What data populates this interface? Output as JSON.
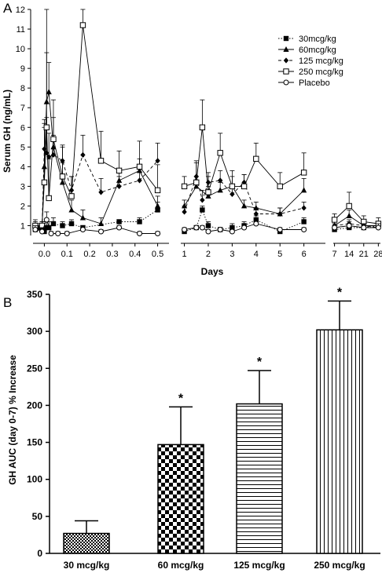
{
  "colors": {
    "ink": "#000000",
    "background": "#ffffff"
  },
  "panel_a": {
    "letter": "A",
    "ylabel": "Serum GH (ng/mL)",
    "xlabel": "Days",
    "legend_position": "top-right"
  },
  "panel_b": {
    "letter": "B",
    "ylabel": "GH AUC (day 0-7) % Increase"
  },
  "chart_data": [
    {
      "type": "line",
      "panel": "A",
      "title": "",
      "xlabel": "Days",
      "ylabel": "Serum GH (ng/mL)",
      "ylim": [
        0,
        12
      ],
      "y_ticks": [
        1,
        2,
        3,
        4,
        5,
        6,
        7,
        8,
        9,
        10,
        11,
        12
      ],
      "grid": false,
      "legend": "top-right",
      "broken_x_axis": true,
      "x_segments": [
        {
          "range": [
            -0.05,
            0.55
          ],
          "ticks": [
            0.0,
            0.1,
            0.2,
            0.3,
            0.4,
            0.5
          ],
          "tick_labels": [
            "0.0",
            "0.1",
            "0.2",
            "0.3",
            "0.4",
            "0.5"
          ]
        },
        {
          "range": [
            0.85,
            6.9
          ],
          "ticks": [
            1,
            2,
            3,
            4,
            5,
            6
          ],
          "tick_labels": [
            "1",
            "2",
            "3",
            "4",
            "5",
            "6"
          ]
        },
        {
          "range": [
            6.4,
            29
          ],
          "ticks": [
            7,
            14,
            21,
            28
          ],
          "tick_labels": [
            "7",
            "14",
            "21",
            "28"
          ]
        }
      ],
      "series": [
        {
          "name": "30mcg/kg",
          "marker": "filled-square",
          "line_style": "dotted",
          "points": [
            {
              "x": -0.04,
              "y": 0.8,
              "err": 0.2
            },
            {
              "x": -0.02,
              "y": 0.9,
              "err": 0.2
            },
            {
              "x": -0.01,
              "y": 0.8,
              "err": 0.2
            },
            {
              "x": 0.0,
              "y": 0.7,
              "err": 0.3
            },
            {
              "x": 0.01,
              "y": 0.9,
              "err": 0.3
            },
            {
              "x": 0.02,
              "y": 0.9,
              "err": 0.3
            },
            {
              "x": 0.04,
              "y": 1.1,
              "err": 0.3
            },
            {
              "x": 0.08,
              "y": 1.0,
              "err": 0.2
            },
            {
              "x": 0.12,
              "y": 1.1,
              "err": 0.2
            },
            {
              "x": 0.17,
              "y": 0.9,
              "err": 0.1
            },
            {
              "x": 0.33,
              "y": 1.2,
              "err": 0.1
            },
            {
              "x": 0.42,
              "y": 1.2,
              "err": 0.2
            },
            {
              "x": 0.5,
              "y": 1.8,
              "err": 0.4
            },
            {
              "x": 1.0,
              "y": 0.7,
              "err": 0.1
            },
            {
              "x": 1.5,
              "y": 0.9,
              "err": 0.1
            },
            {
              "x": 1.75,
              "y": 1.8,
              "err": 0.2
            },
            {
              "x": 2.0,
              "y": 1.0,
              "err": 0.2
            },
            {
              "x": 2.5,
              "y": 0.8,
              "err": 0.1
            },
            {
              "x": 3.0,
              "y": 0.9,
              "err": 0.2
            },
            {
              "x": 3.5,
              "y": 1.0,
              "err": 0.2
            },
            {
              "x": 4.0,
              "y": 1.3,
              "err": 0.2
            },
            {
              "x": 5.0,
              "y": 0.7,
              "err": 0.1
            },
            {
              "x": 6.0,
              "y": 1.2,
              "err": 0.2
            },
            {
              "x": 7,
              "y": 0.8,
              "err": 0.2
            },
            {
              "x": 14,
              "y": 0.9,
              "err": 0.2
            },
            {
              "x": 21,
              "y": 0.9,
              "err": 0.2
            },
            {
              "x": 28,
              "y": 1.0,
              "err": 0.2
            }
          ]
        },
        {
          "name": "60mcg/kg",
          "marker": "filled-triangle",
          "line_style": "solid",
          "points": [
            {
              "x": -0.04,
              "y": 1.0,
              "err": 0.2
            },
            {
              "x": -0.01,
              "y": 0.9,
              "err": 0.2
            },
            {
              "x": 0.0,
              "y": 4.0,
              "err": 2.0
            },
            {
              "x": 0.01,
              "y": 7.3,
              "err": 2.5
            },
            {
              "x": 0.02,
              "y": 7.8,
              "err": 1.5
            },
            {
              "x": 0.04,
              "y": 5.0,
              "err": 1.5
            },
            {
              "x": 0.08,
              "y": 3.2,
              "err": 1.0
            },
            {
              "x": 0.12,
              "y": 1.8,
              "err": 0.5
            },
            {
              "x": 0.17,
              "y": 1.4,
              "err": 0.4
            },
            {
              "x": 0.25,
              "y": 1.1,
              "err": 0.3
            },
            {
              "x": 0.33,
              "y": 3.3,
              "err": 0.5
            },
            {
              "x": 0.42,
              "y": 3.8,
              "err": 0.6
            },
            {
              "x": 0.5,
              "y": 2.0,
              "err": 0.5
            },
            {
              "x": 1.0,
              "y": 2.0,
              "err": 0.3
            },
            {
              "x": 1.5,
              "y": 3.0,
              "err": 0.5
            },
            {
              "x": 2.0,
              "y": 2.5,
              "err": 0.5
            },
            {
              "x": 2.5,
              "y": 2.8,
              "err": 0.4
            },
            {
              "x": 3.0,
              "y": 3.0,
              "err": 0.5
            },
            {
              "x": 3.5,
              "y": 2.0,
              "err": 0.3
            },
            {
              "x": 4.0,
              "y": 1.9,
              "err": 0.3
            },
            {
              "x": 5.0,
              "y": 1.6,
              "err": 0.3
            },
            {
              "x": 6.0,
              "y": 2.8,
              "err": 0.6
            },
            {
              "x": 7,
              "y": 1.0,
              "err": 0.2
            },
            {
              "x": 14,
              "y": 1.5,
              "err": 0.3
            },
            {
              "x": 21,
              "y": 1.0,
              "err": 0.2
            },
            {
              "x": 28,
              "y": 1.0,
              "err": 0.2
            }
          ]
        },
        {
          "name": "125 mcg/kg",
          "marker": "filled-diamond",
          "line_style": "dashed",
          "points": [
            {
              "x": -0.04,
              "y": 0.9,
              "err": 0.2
            },
            {
              "x": -0.01,
              "y": 1.0,
              "err": 0.2
            },
            {
              "x": 0.0,
              "y": 4.9,
              "err": 1.5
            },
            {
              "x": 0.01,
              "y": 4.7,
              "err": 1.8
            },
            {
              "x": 0.02,
              "y": 4.5,
              "err": 1.2
            },
            {
              "x": 0.04,
              "y": 4.6,
              "err": 1.0
            },
            {
              "x": 0.08,
              "y": 4.3,
              "err": 0.8
            },
            {
              "x": 0.12,
              "y": 2.8,
              "err": 0.7
            },
            {
              "x": 0.17,
              "y": 4.6,
              "err": 1.0
            },
            {
              "x": 0.25,
              "y": 2.7,
              "err": 0.7
            },
            {
              "x": 0.33,
              "y": 3.0,
              "err": 0.5
            },
            {
              "x": 0.42,
              "y": 3.3,
              "err": 0.6
            },
            {
              "x": 0.5,
              "y": 4.3,
              "err": 0.9
            },
            {
              "x": 1.0,
              "y": 1.7,
              "err": 0.3
            },
            {
              "x": 1.5,
              "y": 3.5,
              "err": 0.8
            },
            {
              "x": 1.75,
              "y": 2.3,
              "err": 0.5
            },
            {
              "x": 2.0,
              "y": 3.2,
              "err": 0.5
            },
            {
              "x": 2.5,
              "y": 3.3,
              "err": 0.5
            },
            {
              "x": 3.0,
              "y": 2.6,
              "err": 0.4
            },
            {
              "x": 3.5,
              "y": 3.2,
              "err": 0.4
            },
            {
              "x": 4.0,
              "y": 1.6,
              "err": 0.3
            },
            {
              "x": 5.0,
              "y": 1.6,
              "err": 0.3
            },
            {
              "x": 6.0,
              "y": 1.9,
              "err": 0.3
            },
            {
              "x": 7,
              "y": 1.0,
              "err": 0.2
            },
            {
              "x": 14,
              "y": 1.1,
              "err": 0.2
            },
            {
              "x": 21,
              "y": 1.0,
              "err": 0.2
            },
            {
              "x": 28,
              "y": 0.9,
              "err": 0.2
            }
          ]
        },
        {
          "name": "250 mcg/kg",
          "marker": "open-square",
          "line_style": "solid",
          "points": [
            {
              "x": -0.04,
              "y": 1.0,
              "err": 0.3
            },
            {
              "x": -0.01,
              "y": 1.0,
              "err": 0.2
            },
            {
              "x": 0.0,
              "y": 3.2,
              "err": 3.0
            },
            {
              "x": 0.01,
              "y": 6.0,
              "err": 6.0
            },
            {
              "x": 0.02,
              "y": 2.4,
              "err": 2.0
            },
            {
              "x": 0.04,
              "y": 5.4,
              "err": 2.0
            },
            {
              "x": 0.08,
              "y": 3.5,
              "err": 1.5
            },
            {
              "x": 0.12,
              "y": 2.5,
              "err": 1.0
            },
            {
              "x": 0.17,
              "y": 11.2,
              "err": 0.8
            },
            {
              "x": 0.25,
              "y": 4.3,
              "err": 1.5
            },
            {
              "x": 0.33,
              "y": 3.8,
              "err": 1.0
            },
            {
              "x": 0.42,
              "y": 4.0,
              "err": 1.3
            },
            {
              "x": 0.5,
              "y": 2.8,
              "err": 1.3
            },
            {
              "x": 1.0,
              "y": 3.0,
              "err": 0.5
            },
            {
              "x": 1.5,
              "y": 3.2,
              "err": 1.0
            },
            {
              "x": 1.75,
              "y": 6.0,
              "err": 1.4
            },
            {
              "x": 2.0,
              "y": 2.7,
              "err": 0.8
            },
            {
              "x": 2.5,
              "y": 4.7,
              "err": 1.0
            },
            {
              "x": 3.0,
              "y": 3.0,
              "err": 0.8
            },
            {
              "x": 3.5,
              "y": 3.0,
              "err": 0.6
            },
            {
              "x": 4.0,
              "y": 4.4,
              "err": 0.8
            },
            {
              "x": 5.0,
              "y": 3.0,
              "err": 0.7
            },
            {
              "x": 6.0,
              "y": 3.7,
              "err": 1.0
            },
            {
              "x": 7,
              "y": 1.3,
              "err": 0.3
            },
            {
              "x": 14,
              "y": 2.0,
              "err": 0.7
            },
            {
              "x": 21,
              "y": 1.2,
              "err": 0.3
            },
            {
              "x": 28,
              "y": 1.1,
              "err": 0.3
            }
          ]
        },
        {
          "name": "Placebo",
          "marker": "open-circle",
          "line_style": "solid",
          "points": [
            {
              "x": -0.04,
              "y": 0.8,
              "err": 0.2
            },
            {
              "x": -0.01,
              "y": 0.7,
              "err": 0.2
            },
            {
              "x": 0.01,
              "y": 1.3,
              "err": 0.4
            },
            {
              "x": 0.03,
              "y": 0.6,
              "err": 0.1
            },
            {
              "x": 0.06,
              "y": 0.6,
              "err": 0.1
            },
            {
              "x": 0.1,
              "y": 0.6,
              "err": 0.1
            },
            {
              "x": 0.17,
              "y": 0.8,
              "err": 0.1
            },
            {
              "x": 0.25,
              "y": 0.7,
              "err": 0.1
            },
            {
              "x": 0.33,
              "y": 0.9,
              "err": 0.1
            },
            {
              "x": 0.42,
              "y": 0.6,
              "err": 0.1
            },
            {
              "x": 0.5,
              "y": 0.6,
              "err": 0.1
            },
            {
              "x": 1.0,
              "y": 0.8,
              "err": 0.1
            },
            {
              "x": 1.5,
              "y": 0.9,
              "err": 0.1
            },
            {
              "x": 1.75,
              "y": 0.9,
              "err": 0.1
            },
            {
              "x": 2.0,
              "y": 0.7,
              "err": 0.1
            },
            {
              "x": 2.5,
              "y": 0.8,
              "err": 0.1
            },
            {
              "x": 3.0,
              "y": 0.7,
              "err": 0.1
            },
            {
              "x": 3.5,
              "y": 0.9,
              "err": 0.1
            },
            {
              "x": 4.0,
              "y": 1.1,
              "err": 0.1
            },
            {
              "x": 5.0,
              "y": 0.8,
              "err": 0.1
            },
            {
              "x": 6.0,
              "y": 0.8,
              "err": 0.1
            },
            {
              "x": 7,
              "y": 0.9,
              "err": 0.2
            },
            {
              "x": 14,
              "y": 1.0,
              "err": 0.2
            },
            {
              "x": 21,
              "y": 0.9,
              "err": 0.2
            },
            {
              "x": 28,
              "y": 0.9,
              "err": 0.2
            }
          ]
        }
      ]
    },
    {
      "type": "bar",
      "panel": "B",
      "title": "",
      "xlabel": "",
      "ylabel": "GH AUC (day 0-7) % Increase",
      "ylim": [
        0,
        350
      ],
      "y_ticks": [
        0,
        50,
        100,
        150,
        200,
        250,
        300,
        350
      ],
      "grid": false,
      "categories": [
        "30 mcg/kg",
        "60 mcg/kg",
        "125 mcg/kg",
        "250 mcg/kg"
      ],
      "values": [
        27,
        147,
        202,
        302
      ],
      "errors": [
        17,
        51,
        45,
        39
      ],
      "significance": [
        "",
        "*",
        "*",
        "*"
      ],
      "patterns": [
        "fine-checker",
        "coarse-checker",
        "horizontal-lines",
        "vertical-lines"
      ]
    }
  ]
}
